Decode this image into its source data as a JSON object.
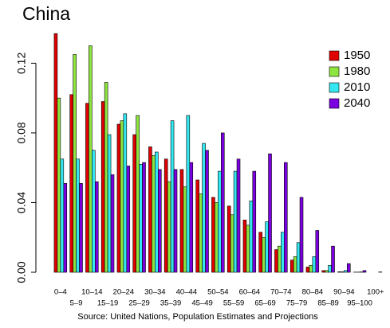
{
  "chart_data": {
    "type": "bar",
    "title": "China",
    "source": "Source:  United Nations, Population Estimates and Projections",
    "categories": [
      "0–4",
      "5–9",
      "10–14",
      "15–19",
      "20–24",
      "25–29",
      "30–34",
      "35–39",
      "40–44",
      "45–49",
      "50–54",
      "55–59",
      "60–64",
      "65–69",
      "70–74",
      "75–79",
      "80–84",
      "85–89",
      "90–94",
      "95–100",
      "100+"
    ],
    "series": [
      {
        "name": "1950",
        "color": "#e00000",
        "values": [
          0.137,
          0.102,
          0.097,
          0.098,
          0.085,
          0.079,
          0.072,
          0.065,
          0.059,
          0.053,
          0.043,
          0.038,
          0.03,
          0.023,
          0.013,
          0.007,
          0.003,
          0.001,
          0.0003,
          0.0001,
          0
        ]
      },
      {
        "name": "1980",
        "color": "#8ee53f",
        "values": [
          0.1,
          0.125,
          0.13,
          0.109,
          0.087,
          0.09,
          0.067,
          0.052,
          0.049,
          0.045,
          0.04,
          0.033,
          0.027,
          0.02,
          0.015,
          0.009,
          0.004,
          0.001,
          0.0003,
          0.0001,
          0
        ]
      },
      {
        "name": "2010",
        "color": "#33e6f0",
        "values": [
          0.065,
          0.065,
          0.07,
          0.079,
          0.091,
          0.062,
          0.069,
          0.087,
          0.09,
          0.074,
          0.058,
          0.058,
          0.041,
          0.029,
          0.023,
          0.017,
          0.009,
          0.004,
          0.001,
          0.0002,
          0
        ]
      },
      {
        "name": "2040",
        "color": "#7b00e0",
        "values": [
          0.051,
          0.051,
          0.052,
          0.056,
          0.061,
          0.063,
          0.059,
          0.059,
          0.063,
          0.07,
          0.08,
          0.065,
          0.058,
          0.068,
          0.063,
          0.043,
          0.024,
          0.015,
          0.005,
          0.001,
          0.0002
        ]
      }
    ],
    "ylim": [
      0,
      0.138
    ],
    "yticks": [
      {
        "value": 0,
        "label": "0.00"
      },
      {
        "value": 0.04,
        "label": "0.04"
      },
      {
        "value": 0.08,
        "label": "0.08"
      },
      {
        "value": 0.12,
        "label": "0.12"
      }
    ]
  }
}
